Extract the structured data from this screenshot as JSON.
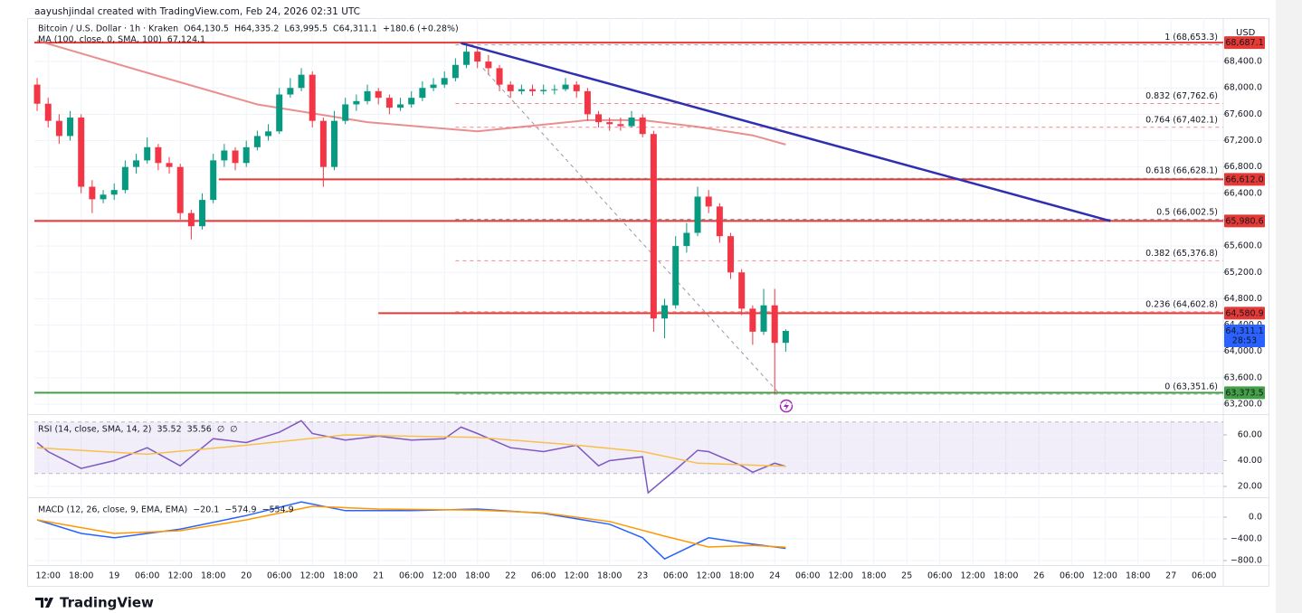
{
  "header": {
    "credit": "aayushjindal created with TradingView.com, Feb 24, 2026 02:31 UTC",
    "currency": "USD"
  },
  "footer": {
    "brand": "TradingView"
  },
  "chart_data": [
    {
      "type": "candlestick",
      "legend": [
        [
          {
            "text": "Bitcoin / U.S. Dollar · 1h · Kraken",
            "color": "#131722"
          },
          {
            "text": "O64,130.5",
            "color": "#131722"
          },
          {
            "text": "H64,335.2",
            "color": "#131722"
          },
          {
            "text": "L63,995.5",
            "color": "#131722"
          },
          {
            "text": "C64,311.1",
            "color": "#131722"
          },
          {
            "text": "+180.6 (+0.28%)",
            "color": "#089981"
          }
        ],
        [
          {
            "text": "MA (100, close, 0, SMA, 100)",
            "color": "#131722"
          },
          {
            "text": "67,124.1",
            "color": "#e57373"
          }
        ]
      ],
      "xlim": [
        9.5,
        225.5
      ],
      "xticks": [
        {
          "value": 12,
          "label": "12:00"
        },
        {
          "value": 18,
          "label": "18:00"
        },
        {
          "value": 24,
          "label": "19"
        },
        {
          "value": 30,
          "label": "06:00"
        },
        {
          "value": 36,
          "label": "12:00"
        },
        {
          "value": 42,
          "label": "18:00"
        },
        {
          "value": 48,
          "label": "20"
        },
        {
          "value": 54,
          "label": "06:00"
        },
        {
          "value": 60,
          "label": "12:00"
        },
        {
          "value": 66,
          "label": "18:00"
        },
        {
          "value": 72,
          "label": "21"
        },
        {
          "value": 78,
          "label": "06:00"
        },
        {
          "value": 84,
          "label": "12:00"
        },
        {
          "value": 90,
          "label": "18:00"
        },
        {
          "value": 96,
          "label": "22"
        },
        {
          "value": 102,
          "label": "06:00"
        },
        {
          "value": 108,
          "label": "12:00"
        },
        {
          "value": 114,
          "label": "18:00"
        },
        {
          "value": 120,
          "label": "23"
        },
        {
          "value": 126,
          "label": "06:00"
        },
        {
          "value": 132,
          "label": "12:00"
        },
        {
          "value": 138,
          "label": "18:00"
        },
        {
          "value": 144,
          "label": "24"
        },
        {
          "value": 150,
          "label": "06:00"
        },
        {
          "value": 156,
          "label": "12:00"
        },
        {
          "value": 162,
          "label": "18:00"
        },
        {
          "value": 168,
          "label": "25"
        },
        {
          "value": 174,
          "label": "06:00"
        },
        {
          "value": 180,
          "label": "12:00"
        },
        {
          "value": 186,
          "label": "18:00"
        },
        {
          "value": 192,
          "label": "26"
        },
        {
          "value": 198,
          "label": "06:00"
        },
        {
          "value": 204,
          "label": "12:00"
        },
        {
          "value": 210,
          "label": "18:00"
        },
        {
          "value": 216,
          "label": "27"
        },
        {
          "value": 222,
          "label": "06:00"
        }
      ],
      "ylim": [
        63090,
        69060
      ],
      "yticks": [
        {
          "value": 63200,
          "label": "63,200.0"
        },
        {
          "value": 63600,
          "label": "63,600.0"
        },
        {
          "value": 64000,
          "label": "64,000.0"
        },
        {
          "value": 64400,
          "label": "64,400.0"
        },
        {
          "value": 64800,
          "label": "64,800.0"
        },
        {
          "value": 65200,
          "label": "65,200.0"
        },
        {
          "value": 65600,
          "label": "65,600.0"
        },
        {
          "value": 66000,
          "label": "66,000.0"
        },
        {
          "value": 66400,
          "label": "66,400.0"
        },
        {
          "value": 66800,
          "label": "66,800.0"
        },
        {
          "value": 67200,
          "label": "67,200.0"
        },
        {
          "value": 67600,
          "label": "67,600.0"
        },
        {
          "value": 68000,
          "label": "68,000.0"
        },
        {
          "value": 68400,
          "label": "68,400.0"
        }
      ],
      "grid": true,
      "up_color": "#089981",
      "down_color": "#f23645",
      "x": [
        10,
        12,
        14,
        16,
        18,
        20,
        22,
        24,
        26,
        28,
        30,
        32,
        34,
        36,
        38,
        40,
        42,
        44,
        46,
        48,
        50,
        52,
        54,
        56,
        58,
        60,
        62,
        64,
        66,
        68,
        70,
        72,
        74,
        76,
        78,
        80,
        82,
        84,
        86,
        88,
        90,
        92,
        94,
        96,
        98,
        100,
        102,
        104,
        106,
        108,
        110,
        112,
        114,
        116,
        118,
        120,
        122,
        124,
        126,
        128,
        130,
        132,
        134,
        136,
        138,
        140,
        142,
        144,
        146
      ],
      "open": [
        68050,
        67760,
        67500,
        67270,
        67550,
        66500,
        66310,
        66380,
        66450,
        66800,
        66900,
        67100,
        66860,
        66800,
        66100,
        65900,
        66300,
        66900,
        67050,
        66860,
        67100,
        67270,
        67340,
        67900,
        68000,
        68200,
        67500,
        66800,
        67500,
        67750,
        67800,
        67950,
        67850,
        67700,
        67750,
        67850,
        68000,
        68050,
        68150,
        68350,
        68550,
        68400,
        68300,
        68050,
        67950,
        67980,
        67950,
        67970,
        67980,
        68050,
        67950,
        67600,
        67480,
        67450,
        67420,
        67550,
        67300,
        64500,
        64700,
        65600,
        65800,
        66350,
        66200,
        65750,
        65200,
        64650,
        64300,
        64700,
        64130.5
      ],
      "high": [
        68150,
        67850,
        67600,
        67650,
        67600,
        66600,
        66450,
        66550,
        66900,
        67000,
        67250,
        67150,
        66950,
        66850,
        66150,
        66400,
        67000,
        67150,
        67100,
        67200,
        67350,
        67450,
        68000,
        68150,
        68300,
        68250,
        67550,
        67650,
        67850,
        67900,
        68050,
        68000,
        67900,
        67850,
        67950,
        68100,
        68150,
        68250,
        68450,
        68653.3,
        68600,
        68500,
        68350,
        68100,
        68050,
        68050,
        68050,
        68050,
        68150,
        68100,
        68000,
        67650,
        67550,
        67550,
        67650,
        67600,
        67350,
        64800,
        65750,
        65950,
        66500,
        66450,
        66250,
        65800,
        65250,
        64700,
        64950,
        64950,
        64335.2
      ],
      "low": [
        67650,
        67400,
        67150,
        67200,
        66400,
        66100,
        66250,
        66300,
        66400,
        66700,
        66850,
        66750,
        66700,
        66000,
        65700,
        65850,
        66250,
        66800,
        66750,
        66800,
        67050,
        67200,
        67300,
        67850,
        67950,
        67400,
        66500,
        66750,
        67450,
        67650,
        67750,
        67750,
        67600,
        67650,
        67700,
        67800,
        67950,
        68000,
        68100,
        68300,
        68300,
        68200,
        67950,
        67850,
        67900,
        67880,
        67900,
        67900,
        67950,
        67850,
        67500,
        67400,
        67350,
        67350,
        67400,
        67250,
        64300,
        64200,
        64650,
        65500,
        65750,
        66100,
        65650,
        65100,
        64550,
        64100,
        64250,
        63351.6,
        63995.5
      ],
      "close": [
        67760,
        67500,
        67270,
        67550,
        66500,
        66310,
        66380,
        66450,
        66800,
        66900,
        67100,
        66860,
        66800,
        66100,
        65900,
        66300,
        66900,
        67050,
        66860,
        67100,
        67270,
        67340,
        67900,
        68000,
        68200,
        67500,
        66800,
        67500,
        67750,
        67800,
        67950,
        67850,
        67700,
        67750,
        67850,
        68000,
        68050,
        68150,
        68350,
        68550,
        68400,
        68300,
        68050,
        67950,
        67980,
        67950,
        67970,
        67980,
        68050,
        67950,
        67600,
        67480,
        67450,
        67420,
        67550,
        67300,
        64500,
        64700,
        65600,
        65800,
        66350,
        66200,
        65750,
        65200,
        64650,
        64300,
        64700,
        64130.5,
        64311.1
      ],
      "ma": {
        "color": "#e57373",
        "x": [
          10,
          30,
          50,
          70,
          90,
          110,
          120,
          130,
          140,
          146
        ],
        "values": [
          68720,
          68230,
          67750,
          67480,
          67340,
          67510,
          67510,
          67410,
          67280,
          67140
        ]
      },
      "trendline": {
        "color": "#2f2fb0",
        "x": [
          87,
          205
        ],
        "values": [
          68680,
          65980
        ]
      },
      "fib_line": {
        "color": "#9598a1",
        "x": [
          91,
          144.7
        ],
        "values": [
          68300,
          63373
        ]
      },
      "fib_start": 86,
      "fibs": [
        {
          "value": 68653.3,
          "label": "1 (68,653.3)",
          "color": "#5b6b9a"
        },
        {
          "value": 67762.6,
          "label": "0.832 (67,762.6)",
          "color": "#f23645"
        },
        {
          "value": 67402.1,
          "label": "0.764 (67,402.1)",
          "color": "#f23645"
        },
        {
          "value": 66628.1,
          "label": "0.618 (66,628.1)",
          "color": "#089981"
        },
        {
          "value": 66002.5,
          "label": "0.5 (66,002.5)",
          "color": "#131722"
        },
        {
          "value": 65376.8,
          "label": "0.382 (65,376.8)",
          "color": "#f23645"
        },
        {
          "value": 64602.8,
          "label": "0.236 (64,602.8)",
          "color": "#f23645"
        },
        {
          "value": 63351.6,
          "label": "0 (63,351.6)",
          "color": "#787b86"
        }
      ],
      "levels": [
        {
          "value": 68687.1,
          "label": "68,687.1",
          "color": "#e53935"
        },
        {
          "value": 66612.0,
          "label": "66,612.0",
          "color": "#e53935",
          "start": 43
        },
        {
          "value": 65980.6,
          "label": "65,980.6",
          "color": "#e53935"
        },
        {
          "value": 64580.9,
          "label": "64,580.9",
          "color": "#e53935",
          "start": 72
        },
        {
          "value": 63373.5,
          "label": "63,373.5",
          "color": "#43a047"
        }
      ],
      "last_price": {
        "value": 64311.1,
        "label": "64,311.1",
        "countdown": "28:53",
        "color": "#2962ff"
      }
    },
    {
      "type": "line",
      "legend": [
        [
          {
            "text": "RSI (14, close, SMA, 14, 2)",
            "color": "#131722"
          },
          {
            "text": "35.52",
            "color": "#7e57c2"
          },
          {
            "text": "35.56",
            "color": "#f7c04a"
          },
          {
            "text": "∅",
            "color": "#131722"
          },
          {
            "text": "∅",
            "color": "#131722"
          }
        ]
      ],
      "ylim": [
        13,
        72.6
      ],
      "yticks": [
        {
          "value": 20,
          "label": "20.00"
        },
        {
          "value": 40,
          "label": "40.00"
        },
        {
          "value": 60,
          "label": "60.00"
        }
      ],
      "band": [
        30,
        70
      ],
      "band_color": "#7e57c2",
      "series": [
        {
          "color": "#7e57c2",
          "x": [
            10,
            12,
            18,
            24,
            30,
            36,
            42,
            48,
            54,
            58,
            60,
            66,
            72,
            78,
            84,
            87,
            90,
            96,
            102,
            108,
            112,
            114,
            120,
            121,
            126,
            130,
            132,
            138,
            140,
            144,
            146
          ],
          "values": [
            54,
            47,
            34,
            40,
            50,
            36,
            57,
            54,
            62,
            71,
            61,
            56,
            59,
            56,
            57,
            66,
            61,
            50,
            47,
            52,
            36,
            40,
            43,
            15,
            33,
            48,
            47,
            36,
            31,
            38,
            35.52
          ]
        },
        {
          "color": "#f7c04a",
          "x": [
            10,
            30,
            48,
            66,
            90,
            108,
            120,
            130,
            146
          ],
          "values": [
            50,
            45,
            52,
            60,
            58,
            52,
            47,
            38,
            35.56
          ]
        }
      ]
    },
    {
      "type": "line",
      "legend": [
        [
          {
            "text": "MACD (12, 26, close, 9, EMA, EMA)",
            "color": "#131722"
          },
          {
            "text": "−20.1",
            "color": "#ef9a9a"
          },
          {
            "text": "−574.9",
            "color": "#2962ff"
          },
          {
            "text": "−554.9",
            "color": "#ff9800"
          }
        ]
      ],
      "ylim": [
        -883,
        333
      ],
      "yticks": [
        {
          "value": -800,
          "label": "−800.0"
        },
        {
          "value": -400,
          "label": "−400.0"
        },
        {
          "value": 0,
          "label": "0.0"
        }
      ],
      "series": [
        {
          "color": "#2962ff",
          "x": [
            10,
            18,
            24,
            36,
            48,
            58,
            66,
            78,
            90,
            102,
            114,
            120,
            124,
            132,
            138,
            146
          ],
          "values": [
            -50,
            -300,
            -380,
            -220,
            30,
            280,
            120,
            120,
            150,
            70,
            -130,
            -380,
            -770,
            -380,
            -470,
            -574.9
          ]
        },
        {
          "color": "#ff9800",
          "x": [
            10,
            24,
            36,
            48,
            60,
            72,
            90,
            102,
            114,
            124,
            132,
            140,
            146
          ],
          "values": [
            -50,
            -300,
            -250,
            -50,
            200,
            150,
            130,
            80,
            -80,
            -350,
            -550,
            -520,
            -554.9
          ]
        }
      ]
    }
  ]
}
